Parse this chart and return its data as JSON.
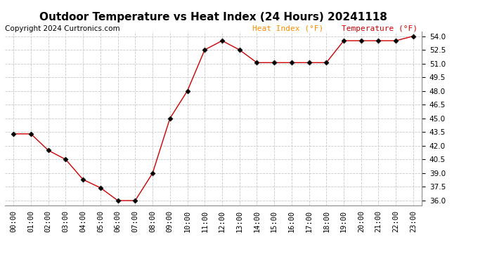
{
  "title": "Outdoor Temperature vs Heat Index (24 Hours) 20241118",
  "copyright": "Copyright 2024 Curtronics.com",
  "legend_heat_index": "Heat Index (°F)",
  "legend_temperature": "Temperature (°F)",
  "x_labels": [
    "00:00",
    "01:00",
    "02:00",
    "03:00",
    "04:00",
    "05:00",
    "06:00",
    "07:00",
    "08:00",
    "09:00",
    "10:00",
    "11:00",
    "12:00",
    "13:00",
    "14:00",
    "15:00",
    "16:00",
    "17:00",
    "18:00",
    "19:00",
    "20:00",
    "21:00",
    "22:00",
    "23:00"
  ],
  "temperature": [
    43.3,
    43.3,
    41.5,
    40.5,
    38.3,
    37.4,
    36.0,
    36.0,
    39.0,
    45.0,
    48.0,
    52.5,
    53.5,
    52.5,
    51.1,
    51.1,
    51.1,
    51.1,
    51.1,
    53.5,
    53.5,
    53.5,
    53.5,
    54.0
  ],
  "heat_index": [
    43.3,
    43.3,
    41.5,
    40.5,
    38.3,
    37.4,
    36.0,
    36.0,
    39.0,
    45.0,
    48.0,
    52.5,
    53.5,
    52.5,
    51.1,
    51.1,
    51.1,
    51.1,
    51.1,
    53.5,
    53.5,
    53.5,
    53.5,
    54.0
  ],
  "ylim_min": 35.5,
  "ylim_max": 54.5,
  "yticks": [
    36.0,
    37.5,
    39.0,
    40.5,
    42.0,
    43.5,
    45.0,
    46.5,
    48.0,
    49.5,
    51.0,
    52.5,
    54.0
  ],
  "line_color": "#cc0000",
  "marker_color": "#000000",
  "marker_size": 3.5,
  "grid_color": "#c8c8c8",
  "background_color": "#ffffff",
  "title_fontsize": 11,
  "copyright_fontsize": 7.5,
  "legend_fontsize": 8,
  "axis_label_fontsize": 7.5,
  "heat_index_legend_color": "#ff8c00",
  "temperature_legend_color": "#cc0000"
}
